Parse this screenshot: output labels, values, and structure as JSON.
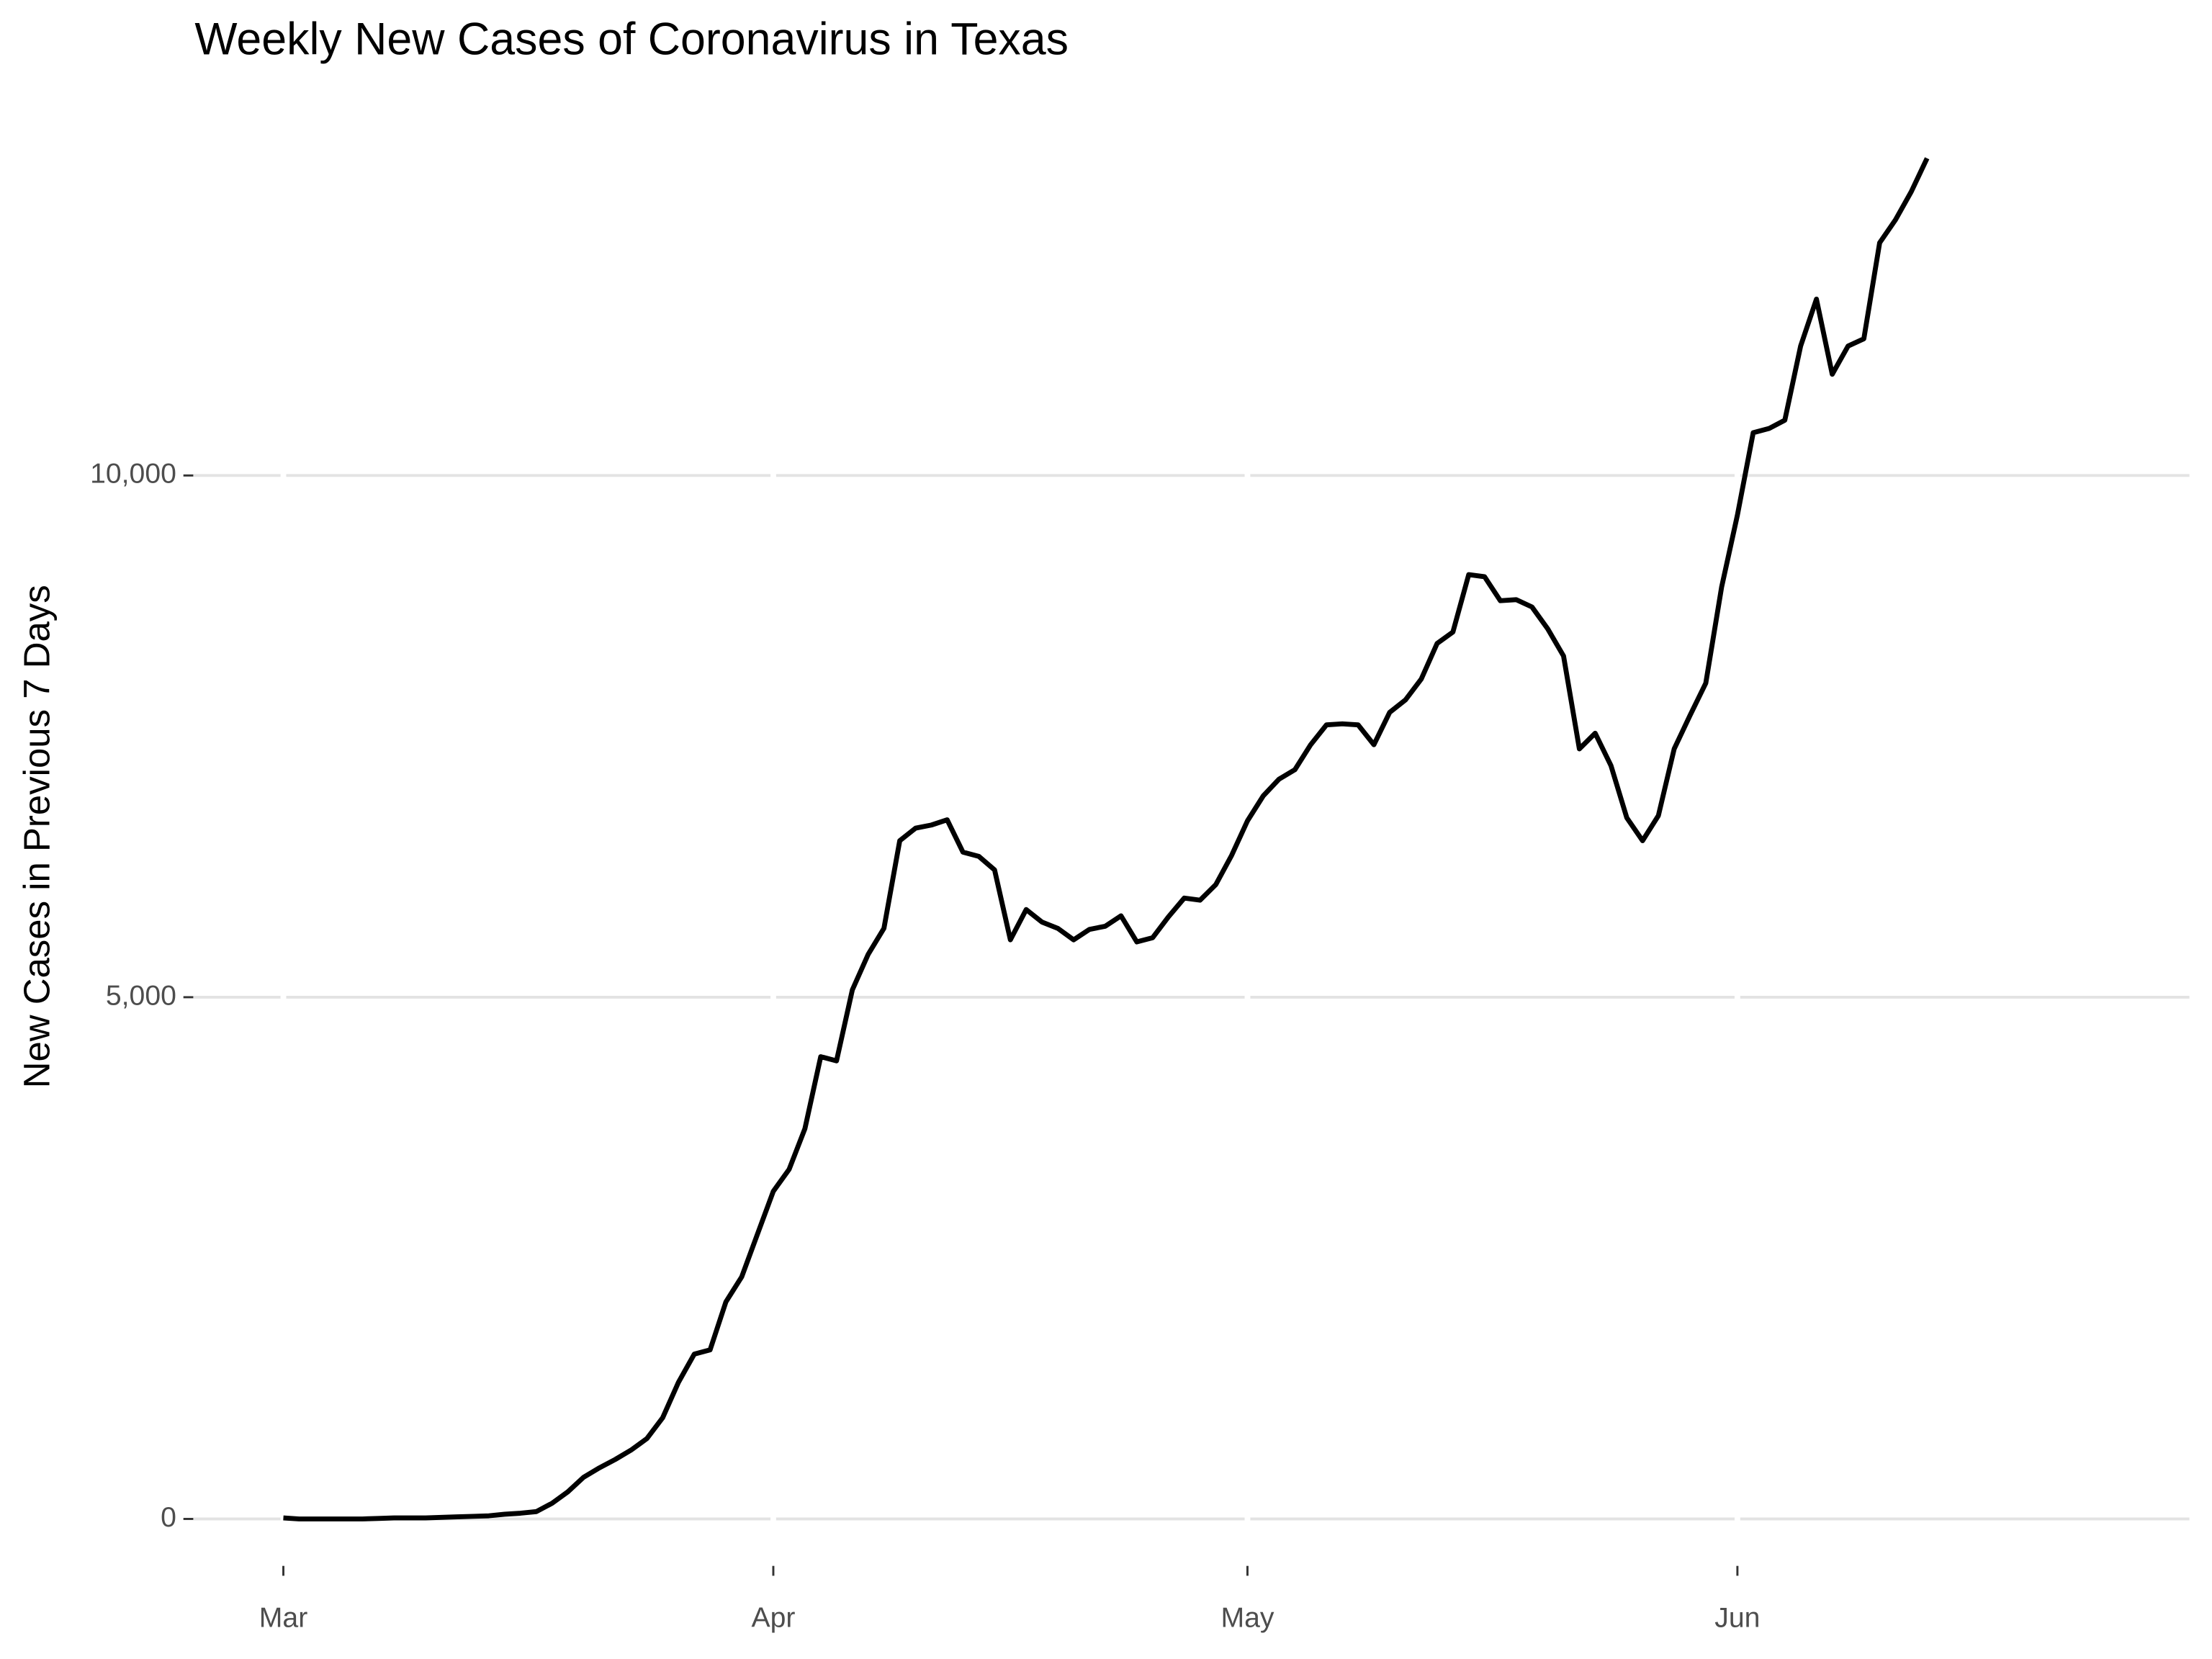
{
  "chart_data": {
    "type": "line",
    "title": "Weekly New Cases of Coronavirus in Texas",
    "y_label": "New Cases in Previous 7 Days",
    "x": [
      0,
      1,
      2,
      3,
      4,
      5,
      6,
      7,
      8,
      9,
      10,
      11,
      12,
      13,
      14,
      15,
      16,
      17,
      18,
      19,
      20,
      21,
      22,
      23,
      24,
      25,
      26,
      27,
      28,
      29,
      30,
      31,
      32,
      33,
      34,
      35,
      36,
      37,
      38,
      39,
      40,
      41,
      42,
      43,
      44,
      45,
      46,
      47,
      48,
      49,
      50,
      51,
      52,
      53,
      54,
      55,
      56,
      57,
      58,
      59,
      60,
      61,
      62,
      63,
      64,
      65,
      66,
      67,
      68,
      69,
      70,
      71,
      72,
      73,
      74,
      75,
      76,
      77,
      78,
      79,
      80,
      81,
      82,
      83,
      84,
      85,
      86,
      87,
      88,
      89,
      90,
      91,
      92,
      93,
      94,
      95,
      96,
      97,
      98,
      99,
      100,
      101,
      102,
      103,
      104
    ],
    "values": [
      10,
      0,
      0,
      0,
      0,
      0,
      5,
      10,
      10,
      10,
      15,
      20,
      25,
      30,
      45,
      55,
      70,
      150,
      260,
      400,
      490,
      570,
      660,
      770,
      970,
      1310,
      1580,
      1620,
      2080,
      2320,
      2730,
      3140,
      3350,
      3740,
      4430,
      4390,
      5070,
      5410,
      5660,
      6500,
      6620,
      6650,
      6700,
      6390,
      6350,
      6220,
      5550,
      5840,
      5720,
      5660,
      5550,
      5650,
      5680,
      5780,
      5530,
      5570,
      5770,
      5950,
      5930,
      6080,
      6360,
      6690,
      6930,
      7090,
      7180,
      7420,
      7610,
      7620,
      7610,
      7420,
      7730,
      7850,
      8050,
      8390,
      8500,
      9050,
      9030,
      8800,
      8810,
      8740,
      8530,
      8270,
      7380,
      7530,
      7220,
      6720,
      6500,
      6740,
      7380,
      7700,
      8010,
      8930,
      9620,
      10410,
      10450,
      10530,
      11240,
      11690,
      10970,
      11240,
      11310,
      12230,
      12450,
      12720,
      13040
    ],
    "color": "#000000",
    "xlim": [
      -5.7,
      120.6
    ],
    "xticks": [
      {
        "value": 0,
        "label": "Mar"
      },
      {
        "value": 31,
        "label": "Apr"
      },
      {
        "value": 61,
        "label": "May"
      },
      {
        "value": 92,
        "label": "Jun"
      }
    ],
    "ylim": [
      -450,
      13340
    ],
    "yticks": [
      0,
      {
        "value": 5000,
        "label": "5,000"
      },
      {
        "value": 10000,
        "label": "10,000"
      }
    ],
    "grid": true
  }
}
